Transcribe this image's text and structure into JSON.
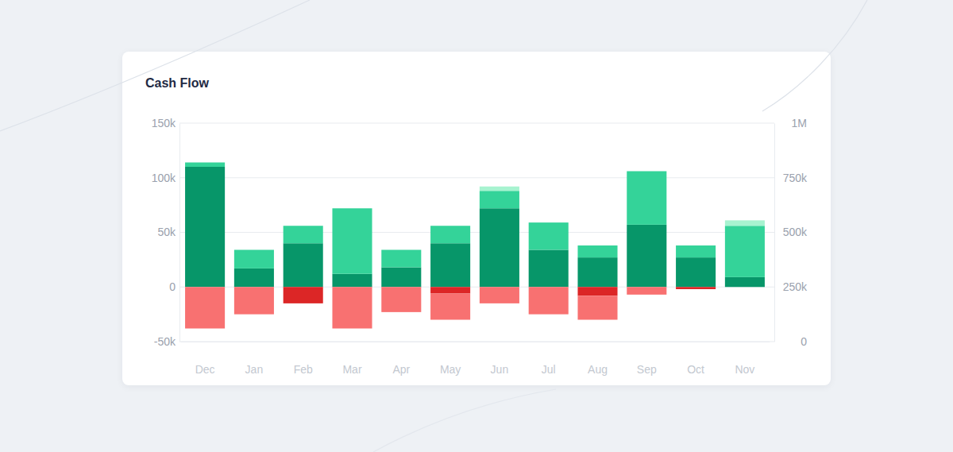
{
  "chart_data": {
    "type": "bar",
    "title": "Cash Flow",
    "stacked": true,
    "grid": true,
    "categories": [
      "Dec",
      "Jan",
      "Feb",
      "Mar",
      "Apr",
      "May",
      "Jun",
      "Jul",
      "Aug",
      "Sep",
      "Oct",
      "Nov"
    ],
    "series": [
      {
        "color": "#079669",
        "values": [
          110000,
          17000,
          40000,
          12000,
          18000,
          40000,
          72000,
          34000,
          27000,
          57000,
          27000,
          9000
        ]
      },
      {
        "color": "#34d399",
        "values": [
          4000,
          17000,
          16000,
          60000,
          16000,
          16000,
          16000,
          25000,
          11000,
          49000,
          11000,
          47000
        ]
      },
      {
        "color": "#a7f3d0",
        "values": [
          0,
          0,
          0,
          0,
          0,
          0,
          4000,
          0,
          0,
          0,
          0,
          5000
        ]
      },
      {
        "color": "#dc2626",
        "values": [
          0,
          0,
          -15000,
          0,
          0,
          -6000,
          0,
          0,
          -8000,
          0,
          -2000,
          0
        ]
      },
      {
        "color": "#f87171",
        "values": [
          -38000,
          -25000,
          0,
          -38000,
          -23000,
          -24000,
          -15000,
          -25000,
          -22000,
          -7000,
          0,
          0
        ]
      }
    ],
    "ylim": [
      -50000,
      150000
    ],
    "yticks": [
      {
        "value": -50000,
        "label": "-50k"
      },
      0,
      {
        "value": 50000,
        "label": "50k"
      },
      {
        "value": 100000,
        "label": "100k"
      },
      {
        "value": 150000,
        "label": "150k"
      }
    ],
    "y2lim": [
      0,
      1000000
    ],
    "y2ticks": [
      0,
      {
        "value": 250000,
        "label": "250k"
      },
      {
        "value": 500000,
        "label": "500k"
      },
      {
        "value": 750000,
        "label": "750k"
      },
      {
        "value": 1000000,
        "label": "1M"
      }
    ]
  }
}
